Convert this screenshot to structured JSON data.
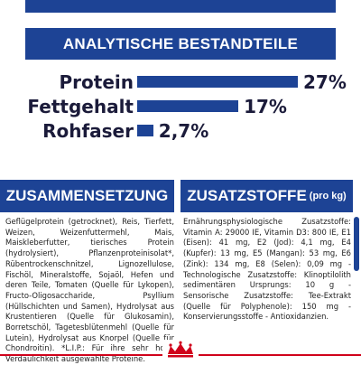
{
  "header": {
    "title": "ANALYTISCHE BESTANDTEILE"
  },
  "chart_data": {
    "type": "bar",
    "categories": [
      "Protein",
      "Fettgehalt",
      "Rohfaser"
    ],
    "values": [
      27,
      17,
      2.7
    ],
    "value_labels": [
      "27%",
      "17%",
      "2,7%"
    ],
    "unit": "%"
  },
  "composition": {
    "title": "ZUSAMMENSETZUNG",
    "text": "Geflügelprotein (getrocknet), Reis, Tierfett, Weizen, Weizenfuttermehl, Mais, Maiskleberfutter, tierisches Protein (hydrolysiert), Pflanzenproteinisolat*, Rübentrockenschnitzel, Lignozellulose, Fischöl, Mineralstoffe, Sojaöl, Hefen und deren Teile, Tomaten (Quelle für Lykopen), Fructo-Oligosaccharide, Psyllium (Hüllschichten und Samen), Hydrolysat aus Krustentieren (Quelle für Glukosamin), Borretschöl, Tagetesblütenmehl (Quelle für Lutein), Hydrolysat aus Knorpel (Quelle für Chondroitin). *L.I.P.: Für ihre sehr hohe Verdaulichkeit ausgewählte Proteine."
  },
  "additives": {
    "title": "ZUSATZSTOFFE",
    "title_suffix": "(pro kg)",
    "text": "Ernährungsphysiologische Zusatzstoffe: Vitamin A: 29000 IE, Vitamin D3: 800 IE, E1 (Eisen): 41 mg, E2 (Jod): 4,1 mg, E4 (Kupfer): 13 mg, E5 (Mangan): 53 mg, E6 (Zink): 134 mg, E8 (Selen): 0,09 mg - Technologische Zusatzstoffe: Klinoptilolith sedimentären Ursprungs: 10 g - Sensorische Zusatzstoffe: Tee-Extrakt (Quelle für Polyphenole): 150 mg - Konservierungsstoffe - Antioxidanzien."
  },
  "colors": {
    "brand_blue": "#1d4395",
    "accent_red": "#d0021b",
    "text": "#1b1b3a"
  },
  "icons": {
    "logo": "royal-canin-crown-logo"
  }
}
